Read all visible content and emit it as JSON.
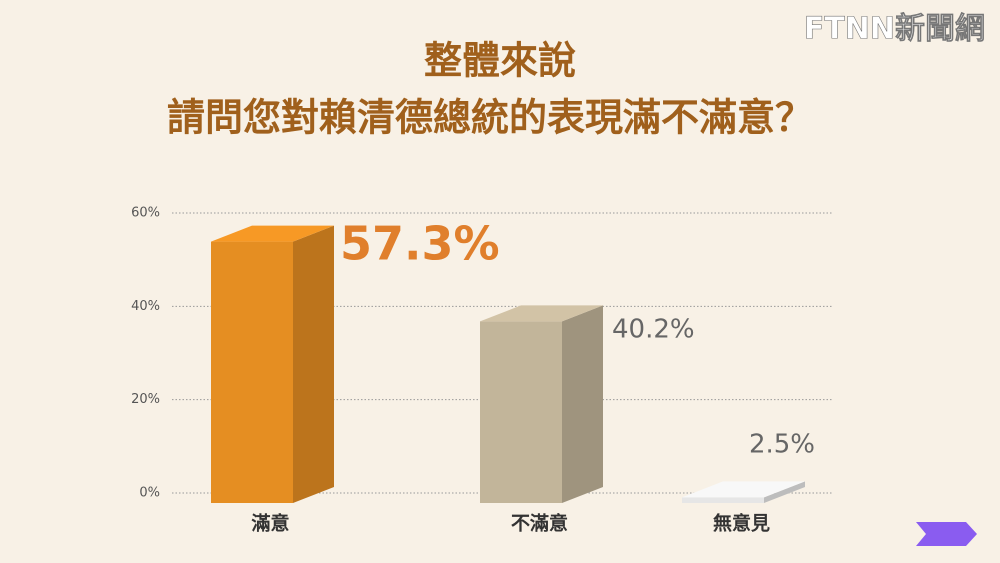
{
  "chart_data": {
    "type": "bar3d",
    "title": "整體來說",
    "subtitle": "請問您對賴清德總統的表現滿不滿意？",
    "source": "FTNN新聞網",
    "categories": [
      "滿意",
      "不滿意",
      "無意見"
    ],
    "values": [
      57.3,
      40.2,
      2.5
    ],
    "value_labels": [
      "57.3%",
      "40.2%",
      "2.5%"
    ],
    "colors": [
      "#e58e22",
      "#c2b59a",
      "#e6e6e6"
    ],
    "ylim": [
      0,
      60
    ],
    "yticks": [
      {
        "value": 0,
        "label": "0%"
      },
      {
        "value": 20,
        "label": "20%"
      },
      {
        "value": 40,
        "label": "40%"
      },
      {
        "value": 60,
        "label": "60%"
      }
    ],
    "grid": true
  }
}
